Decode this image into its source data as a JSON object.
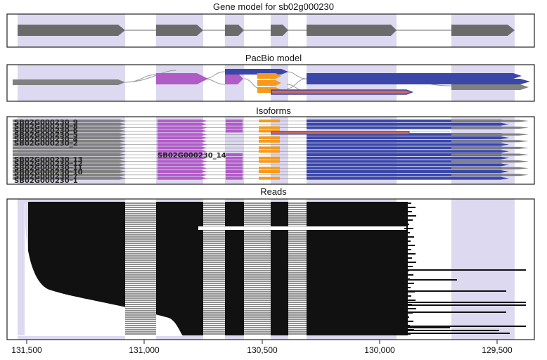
{
  "panels": {
    "gene_model_title": "Gene model for sb02g000230",
    "pacbio_title": "PacBio model",
    "isoforms_title": "Isoforms",
    "reads_title": "Reads"
  },
  "isoform_labels": [
    "SB02G000230_9",
    "SB02G000230_8",
    "SB02G000230_6",
    "SB02G000230_5",
    "SB02G000230_4",
    "SB02G000230_2",
    "SB02G000230_14",
    "SB02G000230_13",
    "SB02G000230_12",
    "SB02G000230_11",
    "SB02G000230_10",
    "SB02G000230_7",
    "SB02G000230_1"
  ],
  "axis": {
    "ticks": [
      "131,500",
      "131,000",
      "130,500",
      "130,000",
      "129,500"
    ]
  },
  "colors": {
    "shade": "#ddd9f0",
    "gene_exon": "#6b6b6b",
    "pacbio_gray": "#808080",
    "purple_exon": "#b05cc6",
    "orange_exon": "#f59a1c",
    "blue_exon": "#3a47a8",
    "reads": "#111111",
    "intron": "#888888"
  }
}
